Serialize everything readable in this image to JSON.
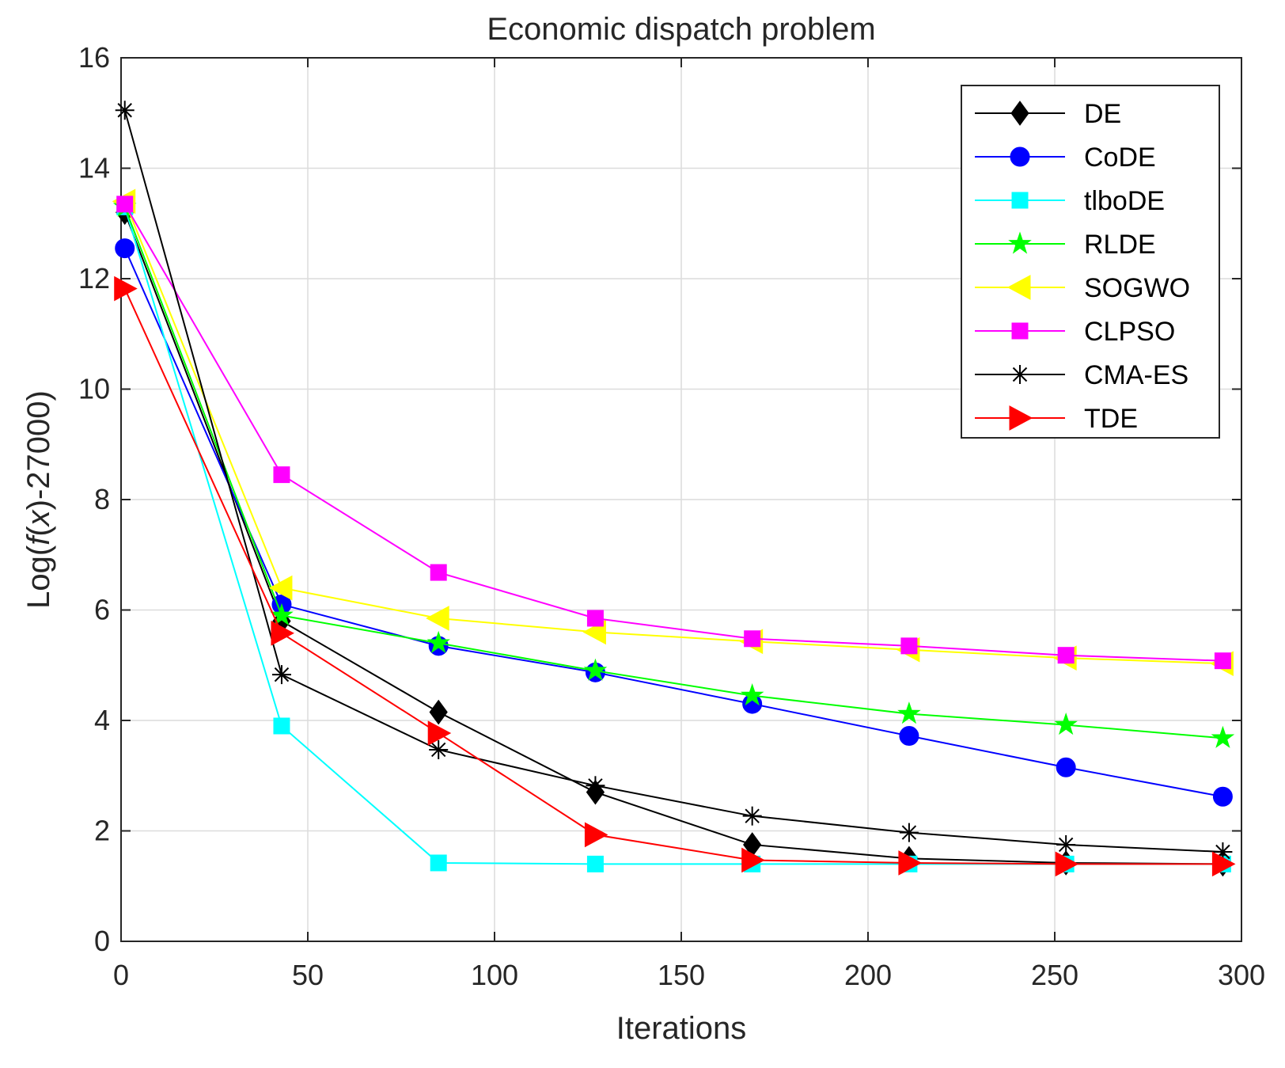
{
  "chart_data": {
    "type": "line",
    "title": "Economic dispatch problem",
    "xlabel": "Iterations",
    "ylabel": "Log(f(x)-27000)",
    "ylabel_parts": {
      "prefix": "Log(",
      "fx": "f",
      "paren_open": "(",
      "x": "x",
      "suffix": ")-27000)"
    },
    "xlim": [
      0,
      300
    ],
    "ylim": [
      0,
      16
    ],
    "xticks": [
      0,
      50,
      100,
      150,
      200,
      250,
      300
    ],
    "yticks": [
      0,
      2,
      4,
      6,
      8,
      10,
      12,
      14,
      16
    ],
    "grid": true,
    "legend_position": "top-right",
    "x": [
      1,
      43,
      85,
      127,
      169,
      211,
      253,
      295
    ],
    "series": [
      {
        "name": "DE",
        "color": "#000000",
        "marker": "diamond",
        "values": [
          13.2,
          5.8,
          4.15,
          2.7,
          1.75,
          1.5,
          1.42,
          1.4
        ]
      },
      {
        "name": "CoDE",
        "color": "#0000ff",
        "marker": "circle",
        "values": [
          12.55,
          6.1,
          5.35,
          4.87,
          4.3,
          3.72,
          3.15,
          2.62
        ]
      },
      {
        "name": "tlboDE",
        "color": "#00ffff",
        "marker": "square",
        "values": [
          13.3,
          3.9,
          1.42,
          1.4,
          1.4,
          1.4,
          1.4,
          1.4
        ]
      },
      {
        "name": "RLDE",
        "color": "#00ff00",
        "marker": "star",
        "values": [
          13.3,
          5.9,
          5.4,
          4.9,
          4.45,
          4.12,
          3.92,
          3.68
        ]
      },
      {
        "name": "SOGWO",
        "color": "#ffff00",
        "marker": "triangle-left",
        "values": [
          13.4,
          6.4,
          5.85,
          5.6,
          5.43,
          5.28,
          5.13,
          5.03
        ]
      },
      {
        "name": "CLPSO",
        "color": "#ff00ff",
        "marker": "square",
        "values": [
          13.35,
          8.45,
          6.68,
          5.85,
          5.48,
          5.35,
          5.18,
          5.08
        ]
      },
      {
        "name": "CMA-ES",
        "color": "#000000",
        "marker": "asterisk",
        "values": [
          15.05,
          4.83,
          3.47,
          2.82,
          2.27,
          1.97,
          1.75,
          1.62
        ]
      },
      {
        "name": "TDE",
        "color": "#ff0000",
        "marker": "triangle-right",
        "values": [
          11.82,
          5.58,
          3.77,
          1.93,
          1.47,
          1.42,
          1.4,
          1.4
        ]
      }
    ]
  }
}
